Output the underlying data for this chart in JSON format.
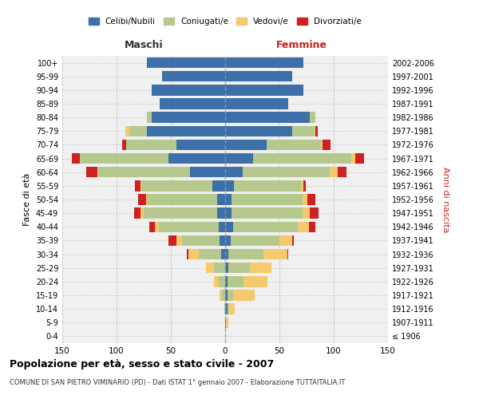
{
  "age_groups": [
    "0-4",
    "5-9",
    "10-14",
    "15-19",
    "20-24",
    "25-29",
    "30-34",
    "35-39",
    "40-44",
    "45-49",
    "50-54",
    "55-59",
    "60-64",
    "65-69",
    "70-74",
    "75-79",
    "80-84",
    "85-89",
    "90-94",
    "95-99",
    "100+"
  ],
  "birth_years": [
    "2002-2006",
    "1997-2001",
    "1992-1996",
    "1987-1991",
    "1982-1986",
    "1977-1981",
    "1972-1976",
    "1967-1971",
    "1962-1966",
    "1957-1961",
    "1952-1956",
    "1947-1951",
    "1942-1946",
    "1937-1941",
    "1932-1936",
    "1927-1931",
    "1922-1926",
    "1917-1921",
    "1912-1916",
    "1907-1911",
    "≤ 1906"
  ],
  "maschi": {
    "celibi": [
      72,
      58,
      68,
      60,
      68,
      72,
      45,
      52,
      32,
      12,
      7,
      7,
      6,
      5,
      4,
      0,
      0,
      0,
      0,
      0,
      0
    ],
    "coniugati": [
      0,
      0,
      0,
      0,
      4,
      16,
      46,
      82,
      85,
      65,
      65,
      68,
      55,
      35,
      20,
      10,
      6,
      3,
      1,
      0,
      0
    ],
    "vedovi": [
      0,
      0,
      0,
      0,
      0,
      4,
      0,
      0,
      1,
      1,
      1,
      3,
      4,
      5,
      10,
      8,
      4,
      2,
      0,
      0,
      0
    ],
    "divorziati": [
      0,
      0,
      0,
      0,
      0,
      0,
      4,
      7,
      10,
      5,
      7,
      6,
      5,
      7,
      1,
      0,
      0,
      0,
      0,
      0,
      0
    ]
  },
  "femmine": {
    "nubili": [
      72,
      62,
      72,
      58,
      78,
      62,
      38,
      26,
      16,
      8,
      6,
      6,
      7,
      5,
      3,
      3,
      2,
      2,
      2,
      1,
      0
    ],
    "coniugate": [
      0,
      0,
      0,
      0,
      5,
      20,
      50,
      90,
      80,
      62,
      65,
      65,
      60,
      45,
      32,
      20,
      15,
      5,
      2,
      0,
      0
    ],
    "vedove": [
      0,
      0,
      0,
      0,
      0,
      1,
      2,
      4,
      8,
      2,
      5,
      7,
      10,
      12,
      22,
      20,
      22,
      20,
      5,
      2,
      0
    ],
    "divorziate": [
      0,
      0,
      0,
      0,
      0,
      2,
      7,
      8,
      8,
      2,
      7,
      8,
      6,
      1,
      1,
      0,
      0,
      0,
      0,
      0,
      0
    ]
  },
  "colors": {
    "celibi_nubili": "#3d6fa8",
    "coniugati": "#b5c98e",
    "vedovi": "#f5c96e",
    "divorziati": "#cc2222"
  },
  "xlim": 150,
  "title": "Popolazione per età, sesso e stato civile - 2007",
  "subtitle": "COMUNE DI SAN PIETRO VIMINARIO (PD) - Dati ISTAT 1° gennaio 2007 - Elaborazione TUTTAITALIA.IT",
  "xlabel_left": "Maschi",
  "xlabel_right": "Femmine",
  "ylabel_left": "Fasce di età",
  "ylabel_right": "Anni di nascita",
  "legend_labels": [
    "Celibi/Nubili",
    "Coniugati/e",
    "Vedovi/e",
    "Divorziati/e"
  ],
  "background_color": "#ffffff",
  "grid_color": "#cccccc"
}
